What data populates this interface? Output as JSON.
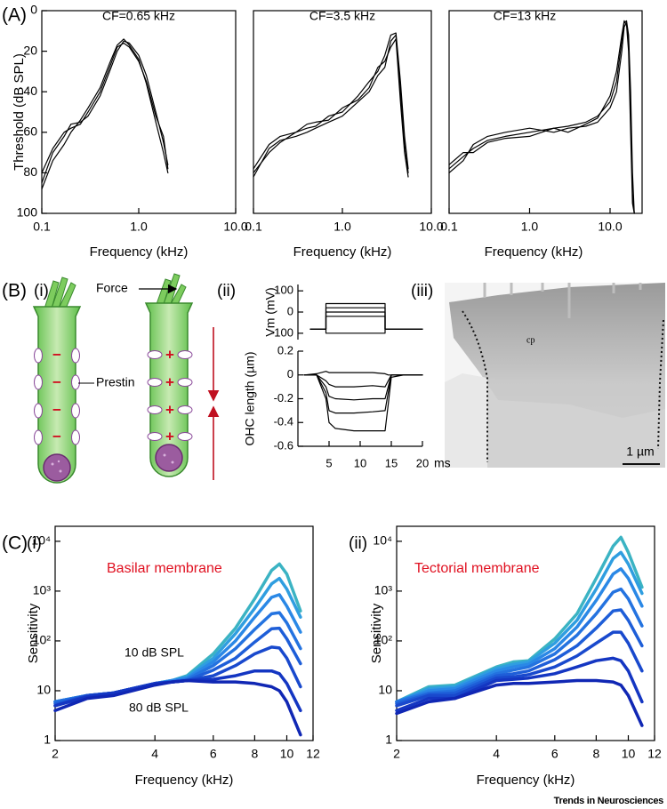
{
  "panel_labels": {
    "A": "(A)",
    "B": "(B)",
    "C": "(C)",
    "Bi": "(i)",
    "Bii": "(ii)",
    "Biii": "(iii)",
    "Ci": "(i)",
    "Cii": "(ii)"
  },
  "diagram": {
    "force": "Force",
    "prestin": "Prestin",
    "minus": "−",
    "plus": "+"
  },
  "micrograph": {
    "region_label": "cp",
    "scale_bar": "1 µm"
  },
  "footer": "Trends in Neurosciences",
  "chart_data": [
    {
      "type": "line",
      "title": "CF=0.65 kHz",
      "xlabel": "Frequency (kHz)",
      "ylabel": "Threshold (dB SPL)",
      "xscale": "log",
      "xlim": [
        0.1,
        10
      ],
      "ylim": [
        100,
        0
      ],
      "xticks": [
        0.1,
        {
          "value": 1,
          "label": "1.0"
        },
        {
          "value": 10,
          "label": "10.0"
        }
      ],
      "yticks": [
        0,
        20,
        40,
        60,
        80,
        100
      ],
      "x": [
        0.1,
        0.13,
        0.17,
        0.2,
        0.25,
        0.3,
        0.4,
        0.5,
        0.6,
        0.7,
        0.8,
        1.0,
        1.2,
        1.5,
        1.8,
        2.0
      ],
      "series": [
        {
          "color": "#000000",
          "values": [
            85,
            70,
            62,
            56,
            55,
            52,
            42,
            30,
            20,
            15,
            16,
            22,
            32,
            50,
            65,
            76
          ]
        },
        {
          "color": "#000000",
          "values": [
            80,
            68,
            60,
            58,
            56,
            50,
            40,
            28,
            18,
            16,
            18,
            25,
            35,
            52,
            62,
            78
          ]
        },
        {
          "color": "#000000",
          "values": [
            88,
            74,
            66,
            60,
            54,
            48,
            38,
            26,
            17,
            14,
            17,
            24,
            36,
            55,
            70,
            80
          ]
        }
      ]
    },
    {
      "type": "line",
      "title": "CF=3.5 kHz",
      "xlabel": "Frequency (kHz)",
      "xscale": "log",
      "xlim": [
        0.1,
        10
      ],
      "ylim": [
        100,
        0
      ],
      "xticks": [
        0.1,
        {
          "value": 1,
          "label": "1.0"
        },
        {
          "value": 10,
          "label": "10.0"
        }
      ],
      "x": [
        0.1,
        0.15,
        0.2,
        0.3,
        0.4,
        0.5,
        0.7,
        1.0,
        1.5,
        2.0,
        2.5,
        3.0,
        3.5,
        4.0,
        4.5,
        5.0,
        5.5
      ],
      "series": [
        {
          "color": "#000000",
          "values": [
            82,
            68,
            64,
            62,
            60,
            58,
            55,
            52,
            45,
            40,
            32,
            28,
            15,
            12,
            40,
            65,
            80
          ]
        },
        {
          "color": "#000000",
          "values": [
            78,
            66,
            62,
            60,
            58,
            57,
            52,
            50,
            42,
            35,
            30,
            22,
            12,
            11,
            35,
            62,
            78
          ]
        },
        {
          "color": "#000000",
          "values": [
            80,
            70,
            65,
            60,
            56,
            55,
            54,
            48,
            44,
            38,
            28,
            25,
            18,
            14,
            45,
            70,
            82
          ]
        }
      ]
    },
    {
      "type": "line",
      "title": "CF=13 kHz",
      "xlabel": "Frequency (kHz)",
      "xscale": "log",
      "xlim": [
        0.1,
        25
      ],
      "ylim": [
        100,
        0
      ],
      "xticks": [
        0.1,
        {
          "value": 1,
          "label": "1.0"
        },
        {
          "value": 10,
          "label": "10.0"
        }
      ],
      "x": [
        0.1,
        0.15,
        0.2,
        0.3,
        0.5,
        1.0,
        2.0,
        3.0,
        5.0,
        7.0,
        10,
        12,
        14,
        15,
        16,
        17,
        18,
        19,
        20
      ],
      "series": [
        {
          "color": "#000000",
          "values": [
            78,
            72,
            68,
            64,
            62,
            60,
            58,
            57,
            55,
            52,
            45,
            35,
            15,
            6,
            5,
            12,
            40,
            80,
            100
          ]
        },
        {
          "color": "#000000",
          "values": [
            80,
            74,
            66,
            62,
            60,
            58,
            60,
            58,
            57,
            55,
            48,
            40,
            20,
            8,
            6,
            15,
            50,
            90,
            100
          ]
        },
        {
          "color": "#000000",
          "values": [
            76,
            70,
            70,
            65,
            63,
            62,
            58,
            60,
            56,
            53,
            42,
            30,
            12,
            5,
            7,
            20,
            60,
            95,
            100
          ]
        }
      ]
    },
    {
      "type": "line",
      "ylabel": "Vm (mV)",
      "xlim": [
        0,
        20
      ],
      "ylim": [
        -130,
        130
      ],
      "yticks": [
        100,
        0,
        -100
      ],
      "x": [
        2,
        4.5,
        4.5,
        14,
        14,
        20
      ],
      "series": [
        {
          "color": "#000000",
          "values": [
            -80,
            -80,
            40,
            40,
            -80,
            -80
          ]
        },
        {
          "color": "#000000",
          "values": [
            -80,
            -80,
            20,
            20,
            -80,
            -80
          ]
        },
        {
          "color": "#000000",
          "values": [
            -80,
            -80,
            0,
            0,
            -80,
            -80
          ]
        },
        {
          "color": "#000000",
          "values": [
            -80,
            -80,
            -20,
            -20,
            -80,
            -80
          ]
        },
        {
          "color": "#000000",
          "values": [
            -80,
            -80,
            -100,
            -100,
            -80,
            -80
          ]
        }
      ]
    },
    {
      "type": "line",
      "ylabel": "OHC length (µm)",
      "xlabel": "ms",
      "xlim": [
        0,
        20
      ],
      "ylim": [
        -0.6,
        0.2
      ],
      "xticks": [
        5,
        10,
        15,
        20
      ],
      "yticks": [
        0.2,
        0,
        -0.2,
        -0.4,
        -0.6
      ],
      "x": [
        1,
        3,
        4.5,
        5,
        6,
        9,
        12,
        14,
        14.5,
        15,
        17,
        20
      ],
      "series": [
        {
          "color": "#000000",
          "values": [
            0,
            0.01,
            0.03,
            0.02,
            0.02,
            0.02,
            0.02,
            0.01,
            0,
            0,
            0,
            0
          ]
        },
        {
          "color": "#000000",
          "values": [
            0,
            0,
            -0.05,
            -0.08,
            -0.1,
            -0.1,
            -0.09,
            -0.1,
            -0.05,
            0,
            0,
            0
          ]
        },
        {
          "color": "#000000",
          "values": [
            0,
            0,
            -0.1,
            -0.18,
            -0.2,
            -0.21,
            -0.2,
            -0.2,
            -0.1,
            0,
            0,
            0
          ]
        },
        {
          "color": "#000000",
          "values": [
            0,
            0,
            -0.15,
            -0.3,
            -0.32,
            -0.32,
            -0.31,
            -0.3,
            -0.15,
            0,
            0,
            0
          ]
        },
        {
          "color": "#000000",
          "values": [
            0,
            0,
            -0.2,
            -0.4,
            -0.45,
            -0.47,
            -0.47,
            -0.47,
            -0.25,
            -0.02,
            0,
            0
          ]
        }
      ]
    },
    {
      "type": "line",
      "title": "Basilar membrane",
      "xlabel": "Frequency (kHz)",
      "ylabel": "Sensitivity",
      "xscale": "log",
      "yscale": "log",
      "xlim": [
        2,
        12
      ],
      "ylim": [
        1,
        20000
      ],
      "xticks": [
        2,
        4,
        6,
        8,
        10,
        12
      ],
      "yticks": [
        1,
        10,
        {
          "value": 100,
          "label": "10²"
        },
        {
          "value": 1000,
          "label": "10³"
        },
        {
          "value": 10000,
          "label": "10⁴"
        }
      ],
      "annotations": [
        "10 dB SPL",
        "80 dB SPL"
      ],
      "x": [
        2,
        2.5,
        3,
        4,
        4.5,
        5,
        6,
        7,
        8,
        9,
        9.5,
        10,
        11
      ],
      "series": [
        {
          "color": "#3bb3c3",
          "values": [
            6,
            8,
            9,
            14,
            16,
            20,
            55,
            180,
            700,
            2600,
            3500,
            2200,
            400
          ]
        },
        {
          "color": "#2f9ee0",
          "values": [
            6,
            8,
            9,
            14,
            16,
            19,
            45,
            140,
            450,
            1400,
            1800,
            1100,
            300
          ]
        },
        {
          "color": "#2a88e6",
          "values": [
            6,
            8,
            9,
            14,
            16,
            18,
            38,
            100,
            300,
            750,
            850,
            500,
            150
          ]
        },
        {
          "color": "#2473e0",
          "values": [
            6,
            8,
            9,
            14,
            15,
            17,
            32,
            70,
            170,
            350,
            370,
            230,
            70
          ]
        },
        {
          "color": "#1e5ed8",
          "values": [
            5.5,
            8,
            9,
            14,
            15,
            16,
            26,
            45,
            95,
            175,
            180,
            110,
            35
          ]
        },
        {
          "color": "#1949cd",
          "values": [
            5,
            8,
            9,
            14,
            15,
            16,
            20,
            32,
            55,
            75,
            72,
            45,
            12
          ]
        },
        {
          "color": "#1436c2",
          "values": [
            5,
            7.5,
            9,
            14,
            15,
            16,
            17,
            20,
            25,
            25,
            22,
            14,
            4
          ]
        },
        {
          "color": "#1027b4",
          "values": [
            4,
            7,
            8,
            13,
            15,
            16,
            15,
            15,
            14,
            12,
            10,
            6,
            1.3
          ]
        }
      ]
    },
    {
      "type": "line",
      "title": "Tectorial membrane",
      "xlabel": "Frequency (kHz)",
      "ylabel": "Sensitivity",
      "xscale": "log",
      "yscale": "log",
      "xlim": [
        2,
        12
      ],
      "ylim": [
        1,
        20000
      ],
      "xticks": [
        2,
        4,
        6,
        8,
        10,
        12
      ],
      "yticks": [
        1,
        10,
        {
          "value": 100,
          "label": "10²"
        },
        {
          "value": 1000,
          "label": "10³"
        },
        {
          "value": 10000,
          "label": "10⁴"
        }
      ],
      "x": [
        2,
        2.5,
        3,
        4,
        4.5,
        5,
        6,
        7,
        8,
        9,
        9.5,
        10,
        11
      ],
      "series": [
        {
          "color": "#3bb3c3",
          "values": [
            6,
            12,
            13,
            30,
            38,
            40,
            110,
            350,
            1800,
            8000,
            12000,
            6000,
            1200
          ]
        },
        {
          "color": "#2f9ee0",
          "values": [
            6,
            11,
            12,
            28,
            34,
            38,
            90,
            260,
            1100,
            4500,
            6000,
            3500,
            900
          ]
        },
        {
          "color": "#2a88e6",
          "values": [
            6,
            10,
            11,
            25,
            30,
            34,
            70,
            190,
            650,
            2200,
            2800,
            1800,
            500
          ]
        },
        {
          "color": "#2473e0",
          "values": [
            6,
            9,
            10,
            22,
            26,
            30,
            55,
            130,
            350,
            950,
            1100,
            700,
            200
          ]
        },
        {
          "color": "#1e5ed8",
          "values": [
            5.5,
            8.5,
            9,
            20,
            22,
            25,
            42,
            80,
            180,
            400,
            420,
            260,
            80
          ]
        },
        {
          "color": "#1949cd",
          "values": [
            5,
            8,
            8,
            18,
            19,
            21,
            30,
            50,
            90,
            150,
            150,
            90,
            25
          ]
        },
        {
          "color": "#1436c2",
          "values": [
            4,
            7,
            7,
            16,
            17,
            18,
            22,
            30,
            40,
            45,
            40,
            25,
            6
          ]
        },
        {
          "color": "#1027b4",
          "values": [
            3.5,
            6,
            7,
            13,
            14,
            14,
            15,
            16,
            16,
            15,
            13,
            8,
            2
          ]
        }
      ]
    }
  ]
}
